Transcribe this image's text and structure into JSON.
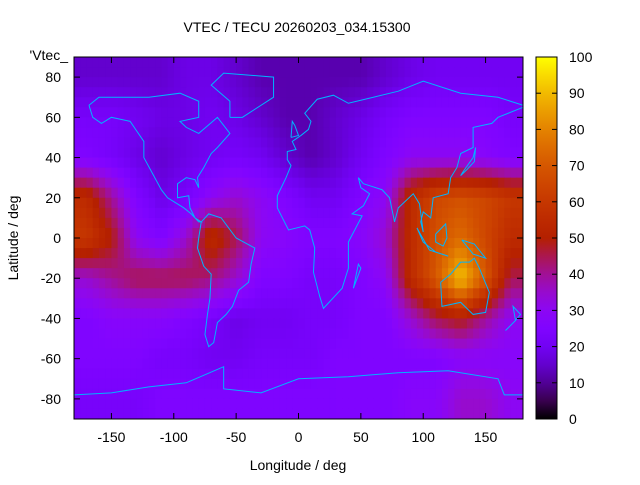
{
  "chart_data": {
    "type": "heatmap",
    "title": "VTEC / TECU 20260203_034.15300",
    "xlabel": "Longitude / deg",
    "ylabel": "Latitude / deg",
    "key_label": "'Vtec_",
    "xlim": [
      -180,
      180
    ],
    "ylim": [
      -90,
      90
    ],
    "xticks": [
      -150,
      -100,
      -50,
      0,
      50,
      100,
      150
    ],
    "yticks": [
      80,
      60,
      40,
      20,
      0,
      -20,
      -40,
      -60,
      -80
    ],
    "cbrange": [
      0,
      100
    ],
    "cbticks": [
      0,
      10,
      20,
      30,
      40,
      50,
      60,
      70,
      80,
      90,
      100
    ],
    "coastline_color": "#00b4ff",
    "grid_lon_centers": [
      -170,
      -150,
      -130,
      -110,
      -90,
      -70,
      -50,
      -30,
      -10,
      10,
      30,
      50,
      70,
      90,
      110,
      130,
      150,
      170
    ],
    "grid_lat_centers": [
      80,
      60,
      40,
      20,
      0,
      -20,
      -40,
      -60,
      -80
    ],
    "values": [
      [
        15,
        15,
        15,
        15,
        18,
        18,
        15,
        12,
        12,
        12,
        12,
        12,
        15,
        18,
        20,
        20,
        20,
        20
      ],
      [
        22,
        22,
        20,
        18,
        18,
        20,
        18,
        15,
        12,
        12,
        15,
        18,
        22,
        25,
        25,
        25,
        25,
        22
      ],
      [
        25,
        22,
        18,
        15,
        18,
        20,
        22,
        20,
        15,
        12,
        15,
        20,
        25,
        30,
        30,
        30,
        28,
        25
      ],
      [
        55,
        40,
        25,
        18,
        22,
        30,
        35,
        30,
        25,
        20,
        20,
        25,
        30,
        55,
        65,
        68,
        65,
        60
      ],
      [
        60,
        50,
        30,
        25,
        35,
        55,
        45,
        30,
        28,
        25,
        25,
        28,
        35,
        55,
        68,
        75,
        65,
        55
      ],
      [
        35,
        40,
        45,
        45,
        45,
        42,
        35,
        25,
        25,
        22,
        22,
        25,
        30,
        55,
        70,
        92,
        70,
        45
      ],
      [
        25,
        28,
        28,
        28,
        25,
        22,
        18,
        20,
        20,
        22,
        22,
        25,
        25,
        35,
        45,
        50,
        40,
        30
      ],
      [
        25,
        25,
        25,
        22,
        22,
        20,
        20,
        22,
        22,
        22,
        25,
        25,
        25,
        25,
        25,
        28,
        28,
        28
      ],
      [
        22,
        22,
        22,
        25,
        25,
        25,
        25,
        25,
        25,
        25,
        25,
        25,
        25,
        28,
        28,
        35,
        35,
        30
      ]
    ]
  }
}
